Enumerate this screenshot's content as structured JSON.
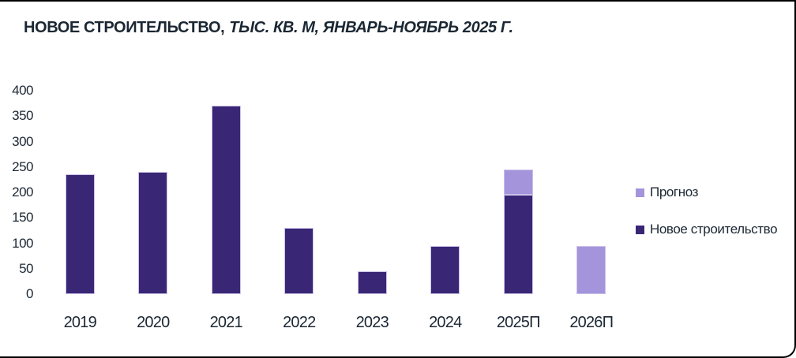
{
  "title": {
    "bold": "НОВОЕ СТРОИТЕЛЬСТВО,",
    "italic": "ТЫС. КВ. М, ЯНВАРЬ-НОЯБРЬ 2025 Г."
  },
  "colors": {
    "actual": "#392675",
    "forecast": "#a494dc",
    "text": "#1b2733",
    "bar_border": "#cbc1e9",
    "frame_border": "#000000"
  },
  "legend": {
    "items": [
      {
        "label": "Прогноз",
        "color_key": "forecast"
      },
      {
        "label": "Новое строительство",
        "color_key": "actual"
      }
    ]
  },
  "chart_data": {
    "type": "bar",
    "stacked": true,
    "title": "НОВОЕ СТРОИТЕЛЬСТВО, ТЫС. КВ. М, ЯНВАРЬ-НОЯБРЬ 2025 Г.",
    "categories": [
      "2019",
      "2020",
      "2021",
      "2022",
      "2023",
      "2024",
      "2025П",
      "2026П"
    ],
    "series": [
      {
        "name": "Новое строительство",
        "values": [
          235,
          240,
          370,
          130,
          45,
          95,
          195,
          0
        ]
      },
      {
        "name": "Прогноз",
        "values": [
          0,
          0,
          0,
          0,
          0,
          0,
          50,
          95
        ]
      }
    ],
    "ylabel": "",
    "xlabel": "",
    "ylim": [
      0,
      400
    ],
    "yticks": [
      0,
      50,
      100,
      150,
      200,
      250,
      300,
      350,
      400
    ],
    "grid": false,
    "legend_position": "right"
  }
}
